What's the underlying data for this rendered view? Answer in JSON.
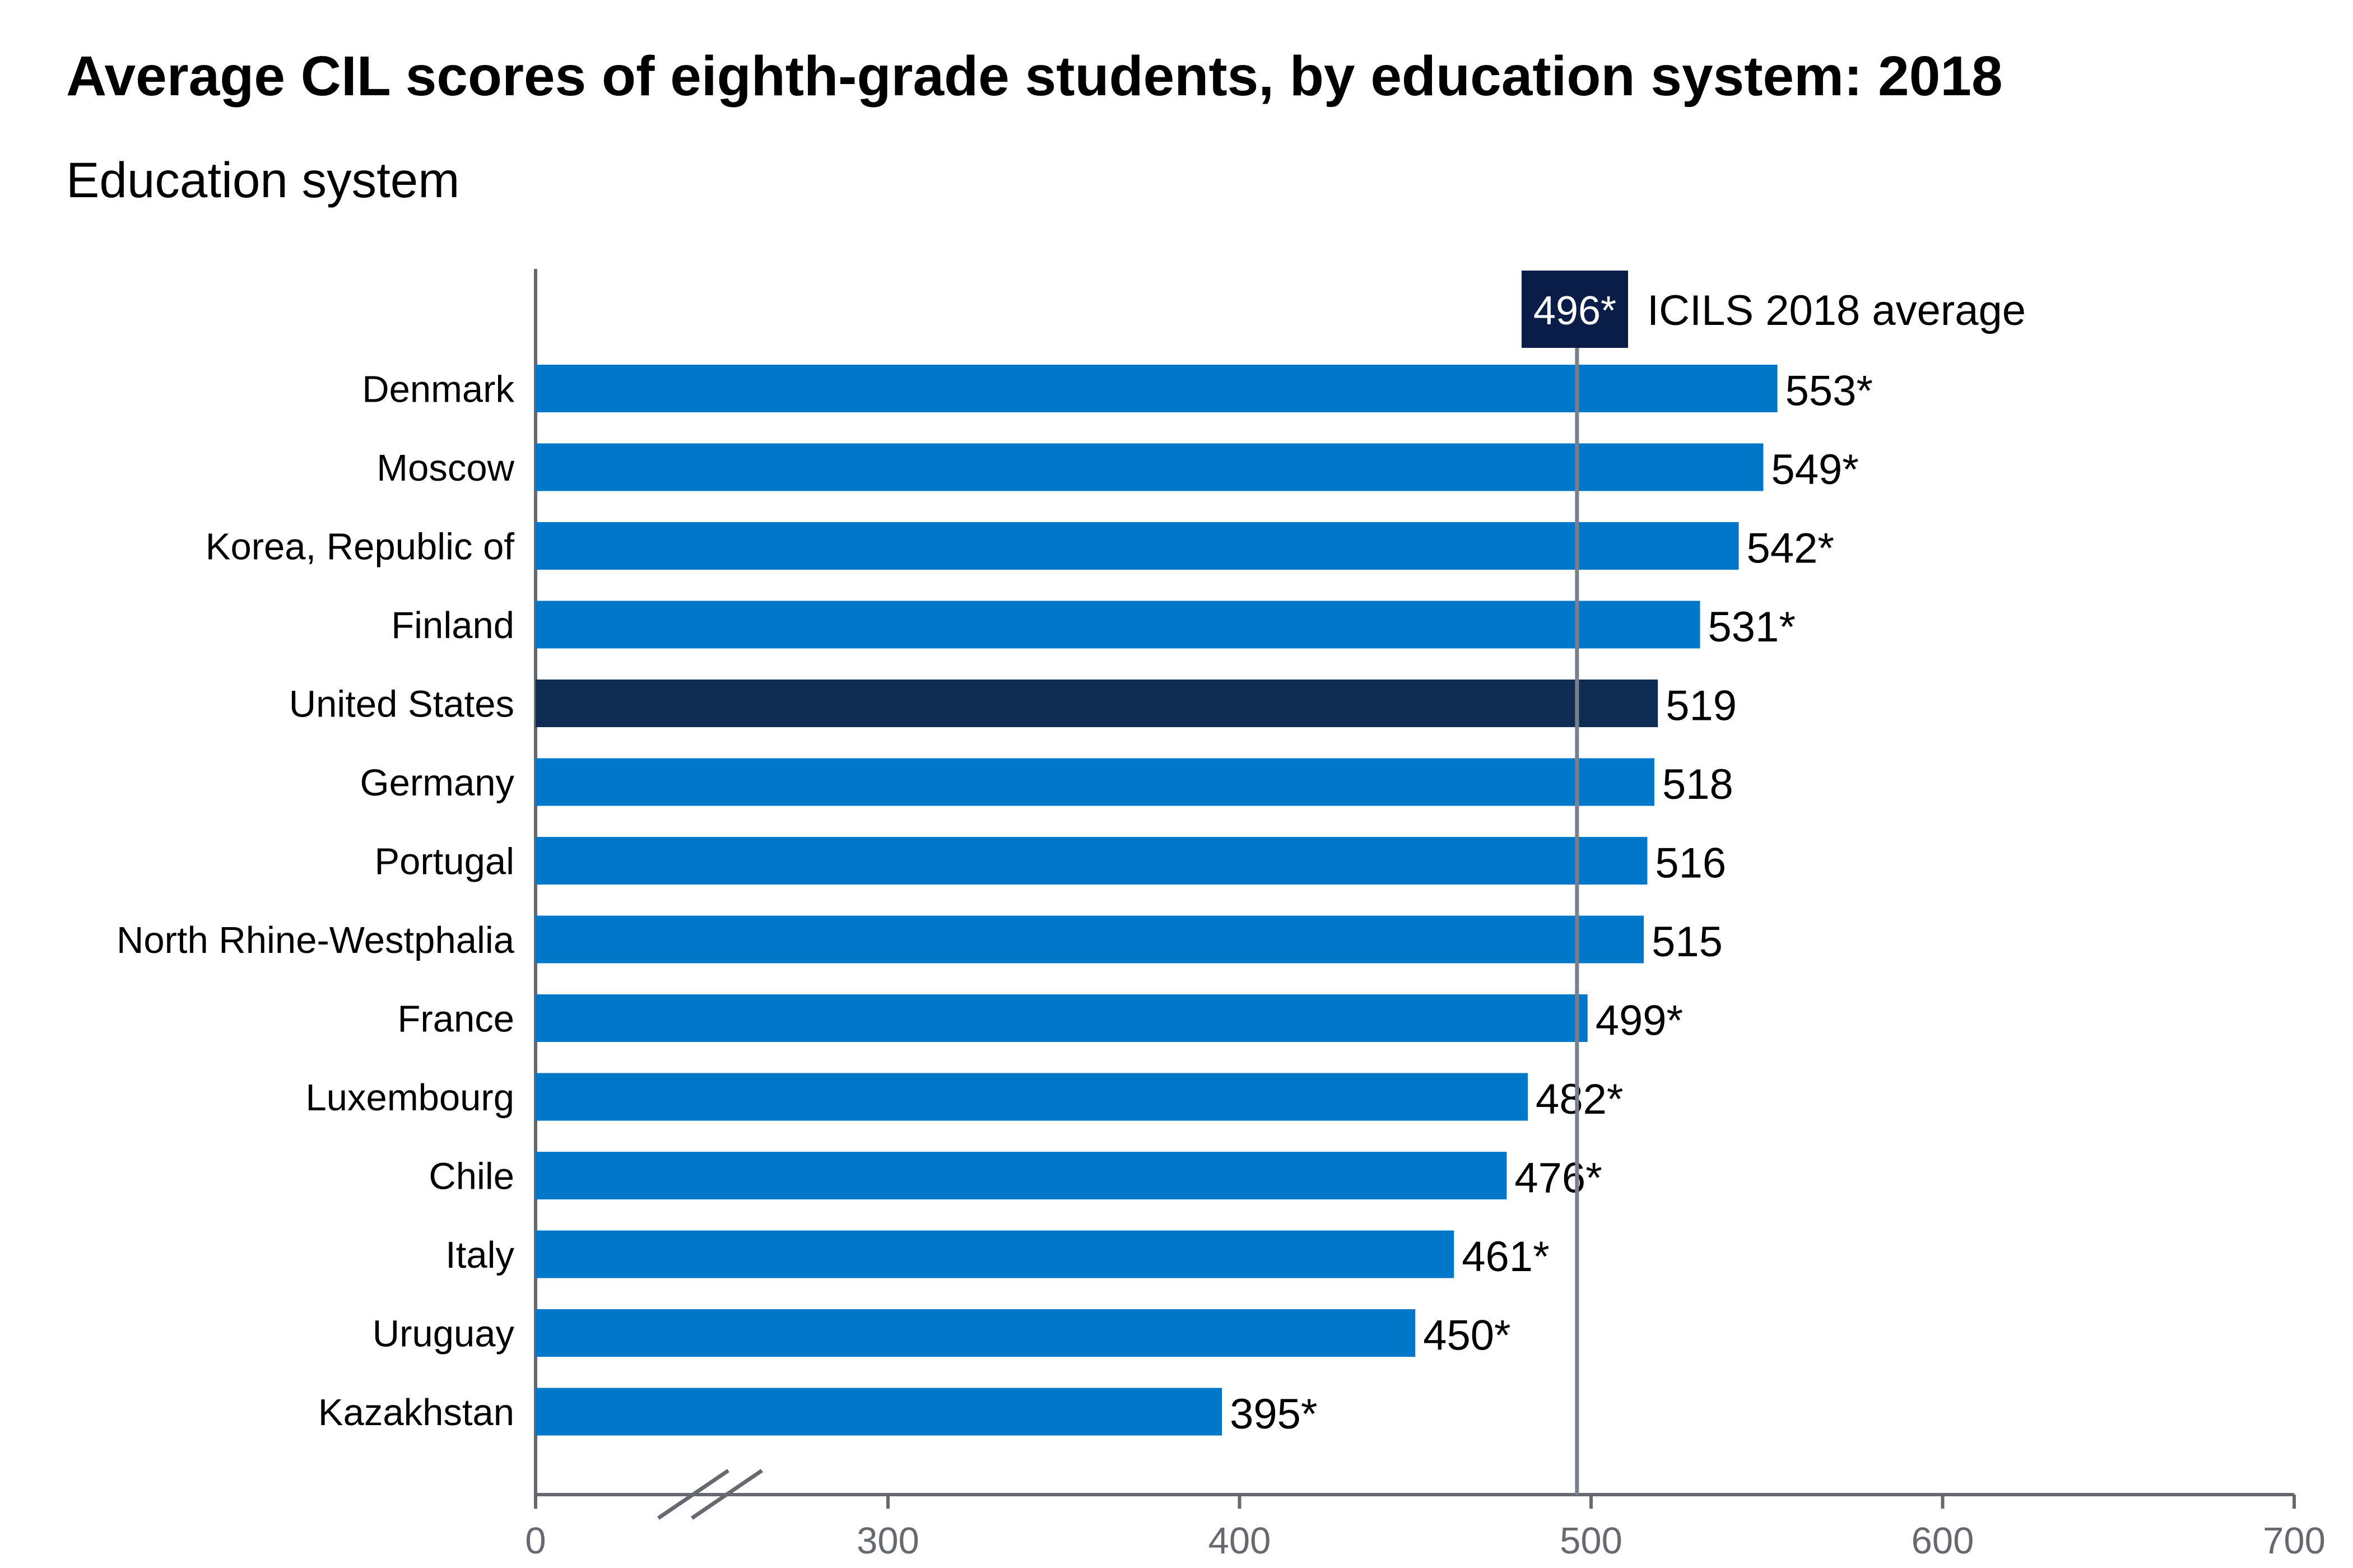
{
  "chart_data": {
    "type": "bar",
    "orientation": "horizontal",
    "title": "Average CIL scores of eighth-grade students, by education system: 2018",
    "subtitle": "Education system",
    "categories": [
      "Denmark",
      "Moscow",
      "Korea, Republic of",
      "Finland",
      "United States",
      "Germany",
      "Portugal",
      "North Rhine-Westphalia",
      "France",
      "Luxembourg",
      "Chile",
      "Italy",
      "Uruguay",
      "Kazakhstan"
    ],
    "values": [
      553,
      549,
      542,
      531,
      519,
      518,
      516,
      515,
      499,
      482,
      476,
      461,
      450,
      395
    ],
    "value_labels": [
      "553*",
      "549*",
      "542*",
      "531*",
      "519",
      "518",
      "516",
      "515",
      "499*",
      "482*",
      "476*",
      "461*",
      "450*",
      "395*"
    ],
    "highlight": "United States",
    "reference_line": {
      "value": 496,
      "badge": "496*",
      "label": "ICILS 2018 average"
    },
    "x_ticks": [
      0,
      300,
      400,
      500,
      600,
      700
    ],
    "x_tick_labels": [
      "0",
      "300",
      "400",
      "500",
      "600",
      "700"
    ],
    "xlim": [
      200,
      700
    ],
    "axis_break": true,
    "grid": false,
    "colors": {
      "bar": "#0077c8",
      "highlight_bar": "#0f2d52",
      "reference_line": "#7a7f8e",
      "badge_bg": "#0a1c48",
      "axis": "#666a70"
    }
  }
}
